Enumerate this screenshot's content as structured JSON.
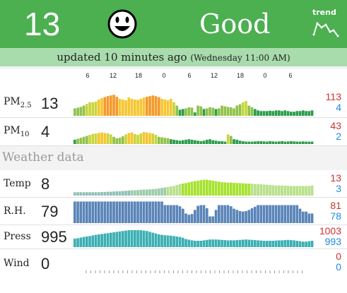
{
  "header": {
    "aqi": "13",
    "status": "Good",
    "face_icon": "smiley-face-icon",
    "trend_label": "trend",
    "trend_icon": "trend-sparkline-icon",
    "bg_color": "#4caf50"
  },
  "updated": {
    "text": "updated 10 minutes ago",
    "when": "(Wednesday 11:00 AM)"
  },
  "time_axis": [
    "6",
    "12",
    "18",
    "0",
    "6",
    "12",
    "18",
    "0",
    "6"
  ],
  "section_title": "Weather data",
  "colors": {
    "max": "#d32f2f",
    "min": "#1e88e5"
  },
  "rows": [
    {
      "id": "pm25",
      "label": "PM",
      "sub": "2.5",
      "value": "13",
      "max": "113",
      "min": "4",
      "data": [
        22,
        24,
        26,
        30,
        35,
        40,
        40,
        42,
        48,
        52,
        55,
        58,
        60,
        62,
        56,
        50,
        48,
        46,
        54,
        50,
        48,
        47,
        50,
        54,
        56,
        58,
        60,
        58,
        55,
        50,
        48,
        46,
        50,
        40,
        30,
        18,
        20,
        22,
        25,
        24,
        10,
        30,
        28,
        20,
        22,
        25,
        24,
        20,
        22,
        30,
        28,
        26,
        25,
        22,
        30,
        34,
        40,
        44,
        30,
        25,
        20,
        16,
        14,
        14,
        14,
        15,
        14,
        16,
        16,
        14,
        16,
        14,
        12,
        12,
        14,
        14,
        16,
        14,
        14,
        16
      ]
    },
    {
      "id": "pm10",
      "label": "PM",
      "sub": "10",
      "value": "4",
      "max": "43",
      "min": "2",
      "data": [
        18,
        22,
        26,
        30,
        34,
        38,
        42,
        44,
        46,
        48,
        46,
        44,
        40,
        30,
        24,
        26,
        32,
        40,
        46,
        48,
        42,
        38,
        44,
        50,
        48,
        46,
        44,
        38,
        30,
        28,
        26,
        24,
        20,
        18,
        16,
        14,
        16,
        18,
        20,
        18,
        16,
        14,
        12,
        14,
        18,
        20,
        16,
        14,
        12,
        12,
        10,
        40,
        34,
        20,
        18,
        14,
        12,
        10,
        10,
        10,
        11,
        12,
        12,
        11,
        10,
        12,
        11,
        10,
        11,
        12,
        10,
        11,
        12,
        11,
        10,
        10,
        11,
        10,
        10,
        10
      ]
    },
    {
      "id": "temp",
      "label": "Temp",
      "value": "8",
      "max": "13",
      "min": "3",
      "data": [
        14,
        14,
        14,
        14,
        14,
        14,
        14,
        14,
        14,
        15,
        15,
        16,
        16,
        17,
        18,
        18,
        19,
        20,
        21,
        22,
        22,
        23,
        24,
        25,
        25,
        26,
        27,
        28,
        30,
        32,
        34,
        36,
        38,
        40,
        44,
        48,
        50,
        52,
        55,
        58,
        60,
        62,
        64,
        66,
        66,
        64,
        62,
        60,
        58,
        56,
        55,
        54,
        54,
        53,
        52,
        52,
        51,
        50,
        50,
        49,
        48,
        48,
        47,
        46,
        45,
        44,
        43,
        42,
        42,
        42,
        41,
        41,
        40,
        40,
        40,
        40,
        40,
        40,
        40,
        42
      ]
    },
    {
      "id": "rh",
      "label": "R.H.",
      "value": "79",
      "max": "81",
      "min": "78",
      "data": [
        90,
        90,
        90,
        90,
        90,
        90,
        90,
        90,
        90,
        90,
        90,
        90,
        90,
        90,
        90,
        90,
        90,
        90,
        90,
        90,
        90,
        90,
        90,
        90,
        90,
        90,
        90,
        90,
        90,
        90,
        75,
        75,
        75,
        75,
        75,
        70,
        60,
        40,
        35,
        38,
        55,
        72,
        75,
        75,
        62,
        28,
        28,
        55,
        75,
        75,
        75,
        75,
        70,
        60,
        55,
        50,
        48,
        50,
        55,
        62,
        68,
        75,
        75,
        75,
        75,
        75,
        75,
        75,
        75,
        75,
        75,
        75,
        75,
        75,
        75,
        60,
        48,
        48,
        40,
        40
      ]
    },
    {
      "id": "press",
      "label": "Press",
      "value": "995",
      "max": "1003",
      "min": "993",
      "data": [
        40,
        42,
        45,
        48,
        50,
        52,
        55,
        58,
        60,
        62,
        64,
        66,
        68,
        70,
        72,
        74,
        76,
        78,
        80,
        80,
        80,
        80,
        80,
        78,
        76,
        72,
        68,
        64,
        60,
        58,
        56,
        55,
        54,
        52,
        50,
        48,
        44,
        38,
        35,
        32,
        30,
        30,
        30,
        32,
        34,
        36,
        36,
        36,
        35,
        34,
        33,
        32,
        32,
        32,
        33,
        34,
        35,
        36,
        35,
        34,
        33,
        32,
        31,
        30,
        30,
        30,
        30,
        31,
        32,
        32,
        33,
        34,
        33,
        32,
        30,
        28,
        26,
        26,
        28,
        30
      ]
    },
    {
      "id": "wind",
      "label": "Wind",
      "value": "0",
      "max": "0",
      "min": "0",
      "data": []
    }
  ]
}
